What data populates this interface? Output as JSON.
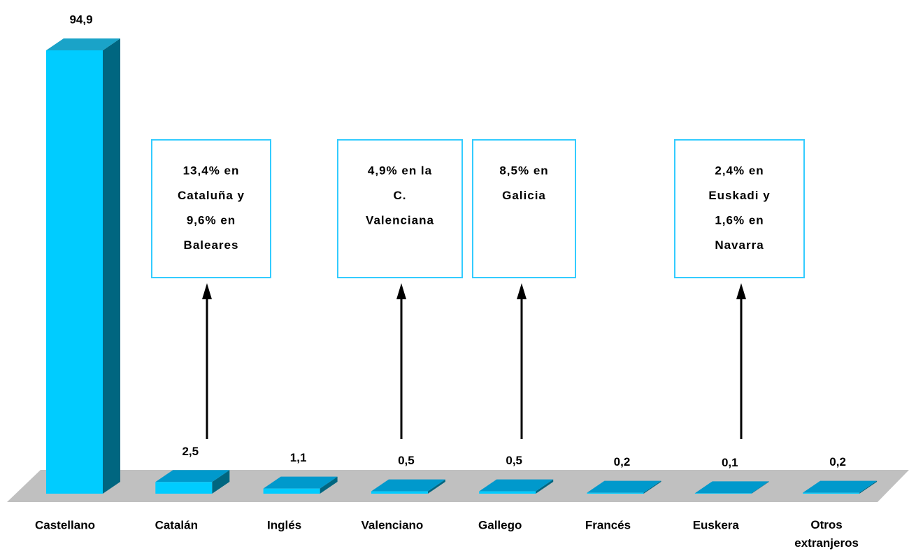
{
  "chart_data": {
    "type": "bar3d",
    "categories": [
      "Castellano",
      "Catalán",
      "Inglés",
      "Valenciano",
      "Gallego",
      "Francés",
      "Euskera",
      "Otros extranjeros"
    ],
    "values": [
      94.9,
      2.5,
      1.1,
      0.5,
      0.5,
      0.2,
      0.1,
      0.2
    ],
    "value_labels": [
      "94,9",
      "2,5",
      "1,1",
      "0,5",
      "0,5",
      "0,2",
      "0,1",
      "0,2"
    ],
    "color": "#00ccff",
    "annotations": [
      {
        "lines": [
          "13,4% en",
          "Cataluña y",
          "9,6% en",
          "Baleares"
        ]
      },
      {
        "lines": [
          "4,9% en la",
          "C.",
          "Valenciana"
        ]
      },
      {
        "lines": [
          "8,5% en",
          "Galicia"
        ]
      },
      {
        "lines": [
          "2,4% en",
          "Euskadi y",
          "1,6% en",
          "Navarra"
        ]
      }
    ]
  }
}
